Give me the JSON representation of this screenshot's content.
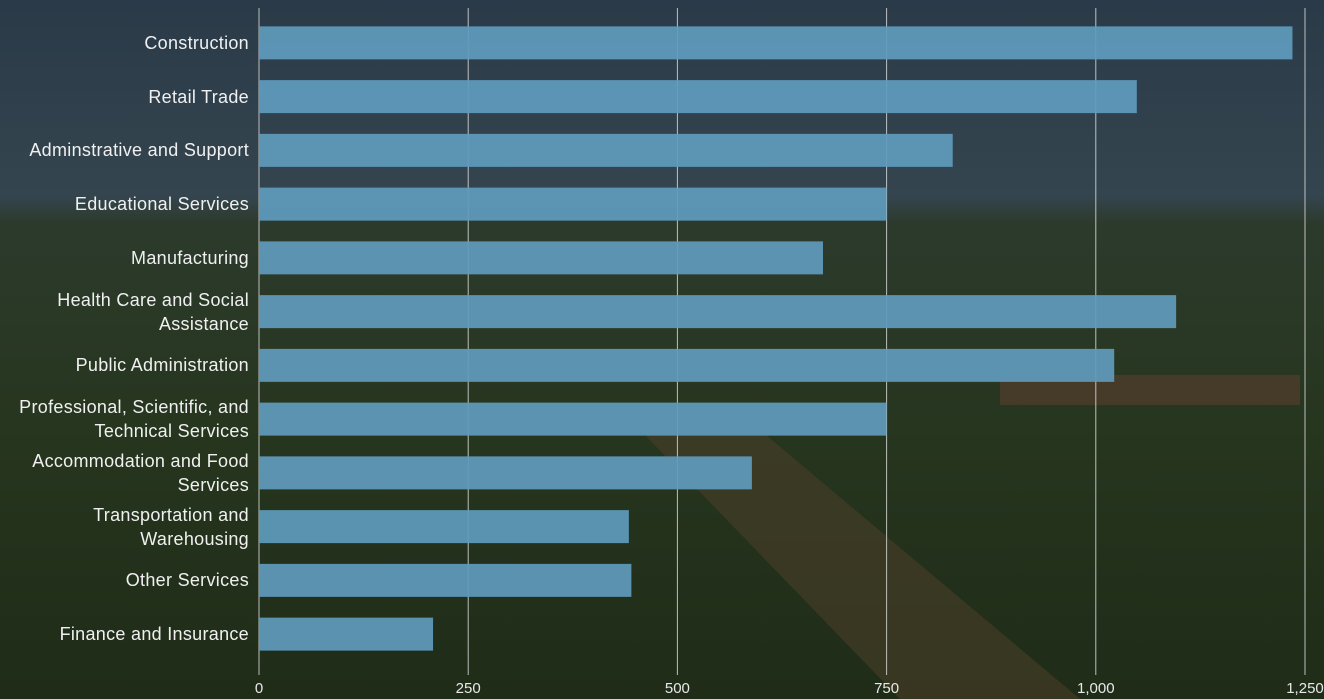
{
  "chart_data": {
    "type": "bar",
    "orientation": "horizontal",
    "categories": [
      "Construction",
      "Retail Trade",
      "Adminstrative and Support",
      "Educational Services",
      "Manufacturing",
      "Health Care and Social Assistance",
      "Public Administration",
      "Professional, Scientific, and Technical Services",
      "Accommodation and Food Services",
      "Transportation and Warehousing",
      "Other Services",
      "Finance and Insurance"
    ],
    "values": [
      1235,
      1049,
      829,
      750,
      674,
      1096,
      1022,
      750,
      589,
      442,
      445,
      208
    ],
    "color": "#5f9bbd",
    "xlim": [
      0,
      1250
    ],
    "xticks": [
      0,
      250,
      500,
      750,
      {
        "value": 1000,
        "label": "1,000"
      },
      {
        "value": 1250,
        "label": "1,250"
      }
    ],
    "grid": true
  }
}
